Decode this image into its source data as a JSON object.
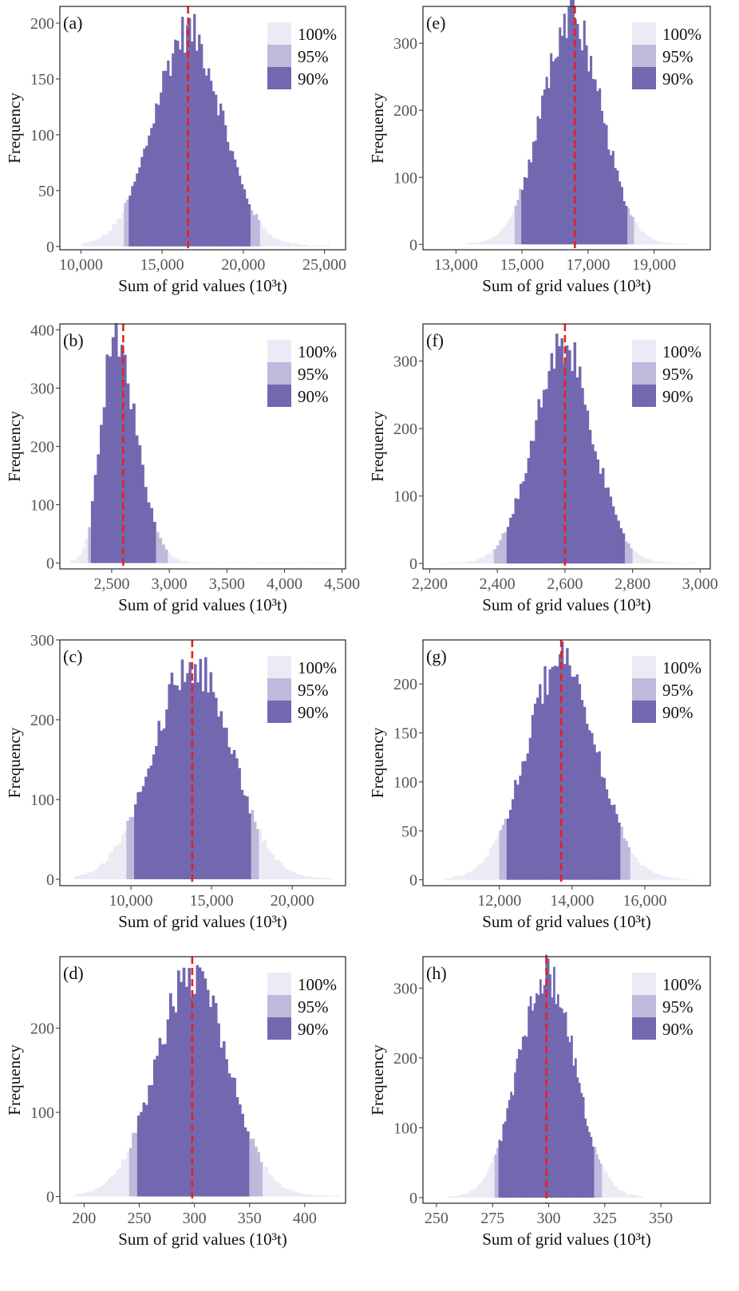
{
  "colors": {
    "c100": "#ECEBF5",
    "c95": "#BDBADB",
    "c90": "#7268B0",
    "ref": "#E8201C"
  },
  "chart_data": [
    {
      "type": "bar",
      "panel": "(a)",
      "xlabel": "Sum of grid values (10³t)",
      "ylabel": "Frequency",
      "xlim": [
        8700,
        26300
      ],
      "ylim": [
        -3,
        215
      ],
      "xticks": [
        10000,
        15000,
        20000,
        25000
      ],
      "xtick_labels": [
        "10,000",
        "15,000",
        "20,000",
        "25,000"
      ],
      "yticks": [
        0,
        50,
        100,
        150,
        200
      ],
      "yref": 16600,
      "dist": {
        "peak": 192,
        "peak_x": 16600,
        "sd_left": 2100,
        "sd_right": 2100,
        "min": 10000,
        "max": 25300,
        "bins": 104
      },
      "intervals": {
        "i95": [
          12600,
          21100
        ],
        "i90": [
          13000,
          20500
        ]
      },
      "legend": [
        "100%",
        "95%",
        "90%"
      ]
    },
    {
      "type": "bar",
      "panel": "(b)",
      "xlabel": "Sum of grid values (10³t)",
      "ylabel": "Frequency",
      "xlim": [
        2050,
        4530
      ],
      "ylim": [
        -10,
        410
      ],
      "xticks": [
        2500,
        3000,
        3500,
        4000,
        4500
      ],
      "xtick_labels": [
        "2,500",
        "3,000",
        "3,500",
        "4,000",
        "4,500"
      ],
      "yticks": [
        0,
        100,
        200,
        300,
        400
      ],
      "yref": 2600,
      "dist": {
        "peak": 375,
        "peak_x": 2520,
        "sd_left": 115,
        "sd_right": 190,
        "min": 2140,
        "max": 4450,
        "bins": 90
      },
      "intervals": {
        "i95": [
          2290,
          2980
        ],
        "i90": [
          2320,
          2880
        ]
      },
      "legend": [
        "100%",
        "95%",
        "90%"
      ]
    },
    {
      "type": "bar",
      "panel": "(c)",
      "xlabel": "Sum of grid values (10³t)",
      "ylabel": "Frequency",
      "xlim": [
        5600,
        23300
      ],
      "ylim": [
        -8,
        300
      ],
      "xticks": [
        10000,
        15000,
        20000
      ],
      "xtick_labels": [
        "10,000",
        "15,000",
        "20,000"
      ],
      "yticks": [
        0,
        100,
        200,
        300
      ],
      "yref": 13800,
      "dist": {
        "peak": 270,
        "peak_x": 13800,
        "sd_left": 2400,
        "sd_right": 2400,
        "min": 6500,
        "max": 22600,
        "bins": 100
      },
      "intervals": {
        "i95": [
          9700,
          18000
        ],
        "i90": [
          10200,
          17500
        ]
      },
      "legend": [
        "100%",
        "95%",
        "90%"
      ]
    },
    {
      "type": "bar",
      "panel": "(d)",
      "xlabel": "Sum of grid values (10³t)",
      "ylabel": "Frequency",
      "xlim": [
        178,
        437
      ],
      "ylim": [
        -8,
        285
      ],
      "xticks": [
        200,
        250,
        300,
        350,
        400
      ],
      "xtick_labels": [
        "200",
        "250",
        "300",
        "350",
        "400"
      ],
      "yticks": [
        0,
        100,
        200
      ],
      "yref": 298,
      "dist": {
        "peak": 262,
        "peak_x": 298,
        "sd_left": 33,
        "sd_right": 33,
        "min": 190,
        "max": 432,
        "bins": 100
      },
      "intervals": {
        "i95": [
          242,
          362
        ],
        "i90": [
          247,
          350
        ]
      },
      "legend": [
        "100%",
        "95%",
        "90%"
      ]
    },
    {
      "type": "bar",
      "panel": "(e)",
      "xlabel": "Sum of grid values (10³t)",
      "ylabel": "Frequency",
      "xlim": [
        12000,
        20700
      ],
      "ylim": [
        -8,
        355
      ],
      "xticks": [
        13000,
        15000,
        17000,
        19000
      ],
      "xtick_labels": [
        "13,000",
        "15,000",
        "17,000",
        "19,000"
      ],
      "yticks": [
        0,
        100,
        200,
        300
      ],
      "yref": 16600,
      "dist": {
        "peak": 335,
        "peak_x": 16500,
        "sd_left": 900,
        "sd_right": 900,
        "min": 13300,
        "max": 20000,
        "bins": 100
      },
      "intervals": {
        "i95": [
          14800,
          18400
        ],
        "i90": [
          15000,
          18200
        ]
      },
      "legend": [
        "100%",
        "95%",
        "90%"
      ]
    },
    {
      "type": "bar",
      "panel": "(f)",
      "xlabel": "Sum of grid values (10³t)",
      "ylabel": "Frequency",
      "xlim": [
        2180,
        3030
      ],
      "ylim": [
        -8,
        355
      ],
      "xticks": [
        2200,
        2400,
        2600,
        2800,
        3000
      ],
      "xtick_labels": [
        "2,200",
        "2,400",
        "2,600",
        "2,800",
        "3,000"
      ],
      "yticks": [
        0,
        100,
        200,
        300
      ],
      "yref": 2600,
      "dist": {
        "peak": 320,
        "peak_x": 2595,
        "sd_left": 88,
        "sd_right": 88,
        "min": 2230,
        "max": 2990,
        "bins": 100
      },
      "intervals": {
        "i95": [
          2390,
          2800
        ],
        "i90": [
          2425,
          2775
        ]
      },
      "legend": [
        "100%",
        "95%",
        "90%"
      ]
    },
    {
      "type": "bar",
      "panel": "(g)",
      "xlabel": "Sum of grid values (10³t)",
      "ylabel": "Frequency",
      "xlim": [
        9900,
        17800
      ],
      "ylim": [
        -6,
        245
      ],
      "xticks": [
        12000,
        14000,
        16000
      ],
      "xtick_labels": [
        "12,000",
        "14,000",
        "16,000"
      ],
      "yticks": [
        0,
        50,
        100,
        150,
        200
      ],
      "yref": 13700,
      "dist": {
        "peak": 222,
        "peak_x": 13700,
        "sd_left": 960,
        "sd_right": 960,
        "min": 10500,
        "max": 17300,
        "bins": 100
      },
      "intervals": {
        "i95": [
          12000,
          15600
        ],
        "i90": [
          12200,
          15300
        ]
      },
      "legend": [
        "100%",
        "95%",
        "90%"
      ]
    },
    {
      "type": "bar",
      "panel": "(h)",
      "xlabel": "Sum of grid values (10³t)",
      "ylabel": "Frequency",
      "xlim": [
        244,
        372
      ],
      "ylim": [
        -8,
        345
      ],
      "xticks": [
        250,
        275,
        300,
        325,
        350
      ],
      "xtick_labels": [
        "250",
        "275",
        "300",
        "325",
        "350"
      ],
      "yticks": [
        0,
        100,
        200,
        300
      ],
      "yref": 299,
      "dist": {
        "peak": 320,
        "peak_x": 299,
        "sd_left": 12.5,
        "sd_right": 12.5,
        "min": 255,
        "max": 342,
        "bins": 100
      },
      "intervals": {
        "i95": [
          276,
          324
        ],
        "i90": [
          278,
          320
        ]
      },
      "legend": [
        "100%",
        "95%",
        "90%"
      ]
    }
  ]
}
